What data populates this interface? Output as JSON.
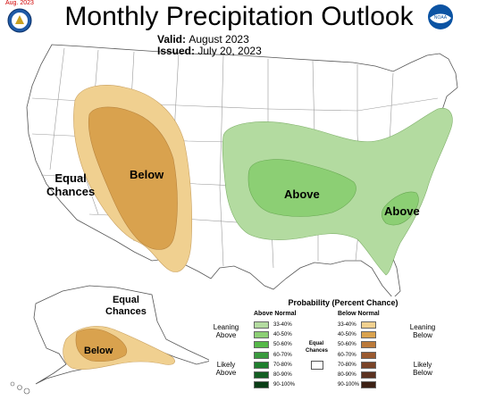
{
  "title": "Monthly Precipitation Outlook",
  "valid": {
    "label": "Valid:",
    "value": "August 2023"
  },
  "issued": {
    "label": "Issued:",
    "value": "July 20, 2023"
  },
  "logos": {
    "left_date": "Aug. 2023",
    "left_name": "noaa-nws-seal-icon",
    "right_name": "noaa-logo-icon",
    "right_text": "NOAA"
  },
  "map_labels": {
    "equal_chances_west": [
      "Equal",
      "Chances"
    ],
    "below_west": "Below",
    "above_midwest": "Above",
    "above_southeast": "Above",
    "equal_chances_alaska": [
      "Equal",
      "Chances"
    ],
    "below_alaska": "Below"
  },
  "legend": {
    "title": "Probability (Percent Chance)",
    "above_header": "Above Normal",
    "below_header": "Below Normal",
    "leaning_above": [
      "Leaning",
      "Above"
    ],
    "likely_above": [
      "Likely",
      "Above"
    ],
    "leaning_below": [
      "Leaning",
      "Below"
    ],
    "likely_below": [
      "Likely",
      "Below"
    ],
    "equal_chances": [
      "Equal",
      "Chances"
    ],
    "rows": [
      {
        "above": "33-40%",
        "below": "33-40%",
        "above_color": "#b3dba0",
        "below_color": "#f0d090"
      },
      {
        "above": "40-50%",
        "below": "40-50%",
        "above_color": "#8ccf74",
        "below_color": "#d9a24e"
      },
      {
        "above": "50-60%",
        "below": "50-60%",
        "above_color": "#55b848",
        "below_color": "#bb7a3a"
      },
      {
        "above": "60-70%",
        "below": "60-70%",
        "above_color": "#3a9a3e",
        "below_color": "#9a5a30"
      },
      {
        "above": "70-80%",
        "below": "70-80%",
        "above_color": "#1f7f2e",
        "below_color": "#7a4428"
      },
      {
        "above": "80-90%",
        "below": "80-90%",
        "above_color": "#135e22",
        "below_color": "#5c3220"
      },
      {
        "above": "90-100%",
        "below": "90-100%",
        "above_color": "#0a3d16",
        "below_color": "#3c2014"
      }
    ]
  },
  "colors": {
    "below_33_40": "#f0d090",
    "below_40_50": "#d9a24e",
    "above_33_40": "#b3dba0",
    "above_40_50": "#8ccf74"
  }
}
